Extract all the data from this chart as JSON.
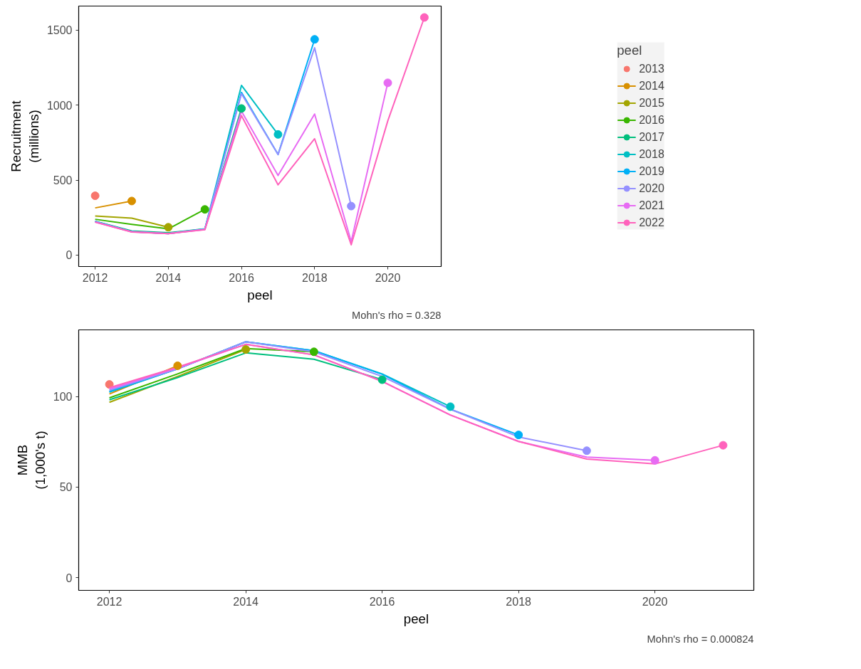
{
  "chart_data": [
    {
      "type": "line",
      "xlabel": "peel",
      "ylabel": "Recruitment\n(millions)",
      "legend_title": "peel",
      "legend": "right",
      "grid": false,
      "line_style": "solid",
      "annotations": [
        "Mohn's rho = 0.328"
      ],
      "xlim": [
        2011.55,
        2021.46
      ],
      "ylim": [
        -76,
        1661
      ],
      "xticks": [
        2012,
        2014,
        2016,
        2018,
        2020
      ],
      "yticks": [
        0,
        500,
        1000,
        1500
      ],
      "x": [
        2012,
        2013,
        2014,
        2015,
        2016,
        2017,
        2018,
        2019,
        2020,
        2021
      ],
      "series": [
        {
          "name": "2013",
          "type": "scatter",
          "marker": "circle",
          "color": "#F8766D",
          "x": [
            2012
          ],
          "values": [
            396
          ]
        },
        {
          "name": "2014",
          "color": "#D89000",
          "values": [
            315,
            361,
            null,
            null,
            null,
            null,
            null,
            null,
            null,
            null
          ]
        },
        {
          "name": "2015",
          "color": "#A3A500",
          "values": [
            261,
            247,
            186,
            null,
            null,
            null,
            null,
            null,
            null,
            null
          ]
        },
        {
          "name": "2016",
          "color": "#39B600",
          "values": [
            239,
            205,
            175,
            305,
            null,
            null,
            null,
            null,
            null,
            null
          ]
        },
        {
          "name": "2017",
          "color": "#00BF7D",
          "values": [
            225,
            161,
            149,
            175,
            978,
            null,
            null,
            null,
            null,
            null
          ]
        },
        {
          "name": "2018",
          "color": "#00BFC4",
          "values": [
            225,
            157,
            145,
            174,
            1132,
            805,
            null,
            null,
            null,
            null
          ]
        },
        {
          "name": "2019",
          "color": "#00B0F6",
          "values": [
            224,
            156,
            144,
            173,
            1085,
            671,
            1439,
            null,
            null,
            null
          ]
        },
        {
          "name": "2020",
          "color": "#9590FF",
          "values": [
            223,
            156,
            144,
            173,
            1076,
            671,
            1383,
            327,
            null,
            null
          ]
        },
        {
          "name": "2021",
          "color": "#E76BF3",
          "values": [
            221,
            155,
            144,
            171,
            960,
            531,
            941,
            90,
            1149,
            null
          ]
        },
        {
          "name": "2022",
          "color": "#FF62BC",
          "values": [
            220,
            154,
            144,
            170,
            930,
            469,
            776,
            69,
            895,
            1585
          ]
        },
        {
          "type": "scatter",
          "marker": "circle",
          "x": [
            2013,
            2014,
            2015,
            2016,
            2017,
            2018,
            2019,
            2020,
            2021
          ],
          "values": [
            361,
            186,
            305,
            978,
            805,
            1439,
            327,
            1149,
            1585
          ],
          "colors": [
            "#D89000",
            "#A3A500",
            "#39B600",
            "#00BF7D",
            "#00BFC4",
            "#00B0F6",
            "#9590FF",
            "#E76BF3",
            "#FF62BC"
          ]
        }
      ]
    },
    {
      "type": "line",
      "xlabel": "peel",
      "ylabel": "MMB\n(1,000's t)",
      "grid": false,
      "line_style": "solid",
      "annotations": [
        "Mohn's rho = 0.000824"
      ],
      "xlim": [
        2011.55,
        2021.45
      ],
      "ylim": [
        -7,
        136.8
      ],
      "xticks": [
        2012,
        2014,
        2016,
        2018,
        2020
      ],
      "yticks": [
        0,
        50,
        100
      ],
      "x": [
        2012,
        2013,
        2014,
        2015,
        2016,
        2017,
        2018,
        2019,
        2020,
        2021
      ],
      "series": [
        {
          "type": "scatter",
          "marker": "circle",
          "color": "#F8766D",
          "x": [
            2012
          ],
          "values": [
            106.7
          ]
        },
        {
          "color": "#D89000",
          "values": [
            101.4,
            117.0,
            null,
            null,
            null,
            null,
            null,
            null,
            null,
            null
          ]
        },
        {
          "color": "#A3A500",
          "values": [
            96.8,
            111.1,
            126.0,
            null,
            null,
            null,
            null,
            null,
            null,
            null
          ]
        },
        {
          "color": "#39B600",
          "values": [
            99.3,
            112.5,
            126.5,
            124.7,
            null,
            null,
            null,
            null,
            null,
            null
          ]
        },
        {
          "color": "#00BF7D",
          "values": [
            98.2,
            110.5,
            124.1,
            120.6,
            109.3,
            null,
            null,
            null,
            null,
            null
          ]
        },
        {
          "color": "#00BFC4",
          "values": [
            102.4,
            115.3,
            130.2,
            125.3,
            112.5,
            94.4,
            null,
            null,
            null,
            null
          ]
        },
        {
          "color": "#00B0F6",
          "values": [
            102.8,
            115.3,
            130.2,
            125.3,
            112.3,
            93.0,
            78.8,
            null,
            null,
            null
          ]
        },
        {
          "color": "#9590FF",
          "values": [
            103.5,
            115.3,
            130.2,
            124.7,
            111.1,
            93.0,
            77.7,
            70.1,
            null,
            null
          ]
        },
        {
          "color": "#E76BF3",
          "values": [
            104.2,
            115.8,
            128.8,
            123.0,
            108.4,
            89.8,
            75.2,
            66.6,
            64.8,
            null
          ]
        },
        {
          "color": "#FF62BC",
          "values": [
            104.9,
            116.2,
            128.8,
            123.0,
            108.4,
            89.8,
            75.2,
            65.5,
            62.8,
            73.1
          ]
        },
        {
          "type": "scatter",
          "marker": "circle",
          "x": [
            2013,
            2014,
            2015,
            2016,
            2017,
            2018,
            2019,
            2020,
            2021
          ],
          "values": [
            117.0,
            126.0,
            124.7,
            109.3,
            94.4,
            78.8,
            70.1,
            64.8,
            73.1
          ],
          "colors": [
            "#D89000",
            "#A3A500",
            "#39B600",
            "#00BF7D",
            "#00BFC4",
            "#00B0F6",
            "#9590FF",
            "#E76BF3",
            "#FF62BC"
          ]
        }
      ]
    }
  ]
}
